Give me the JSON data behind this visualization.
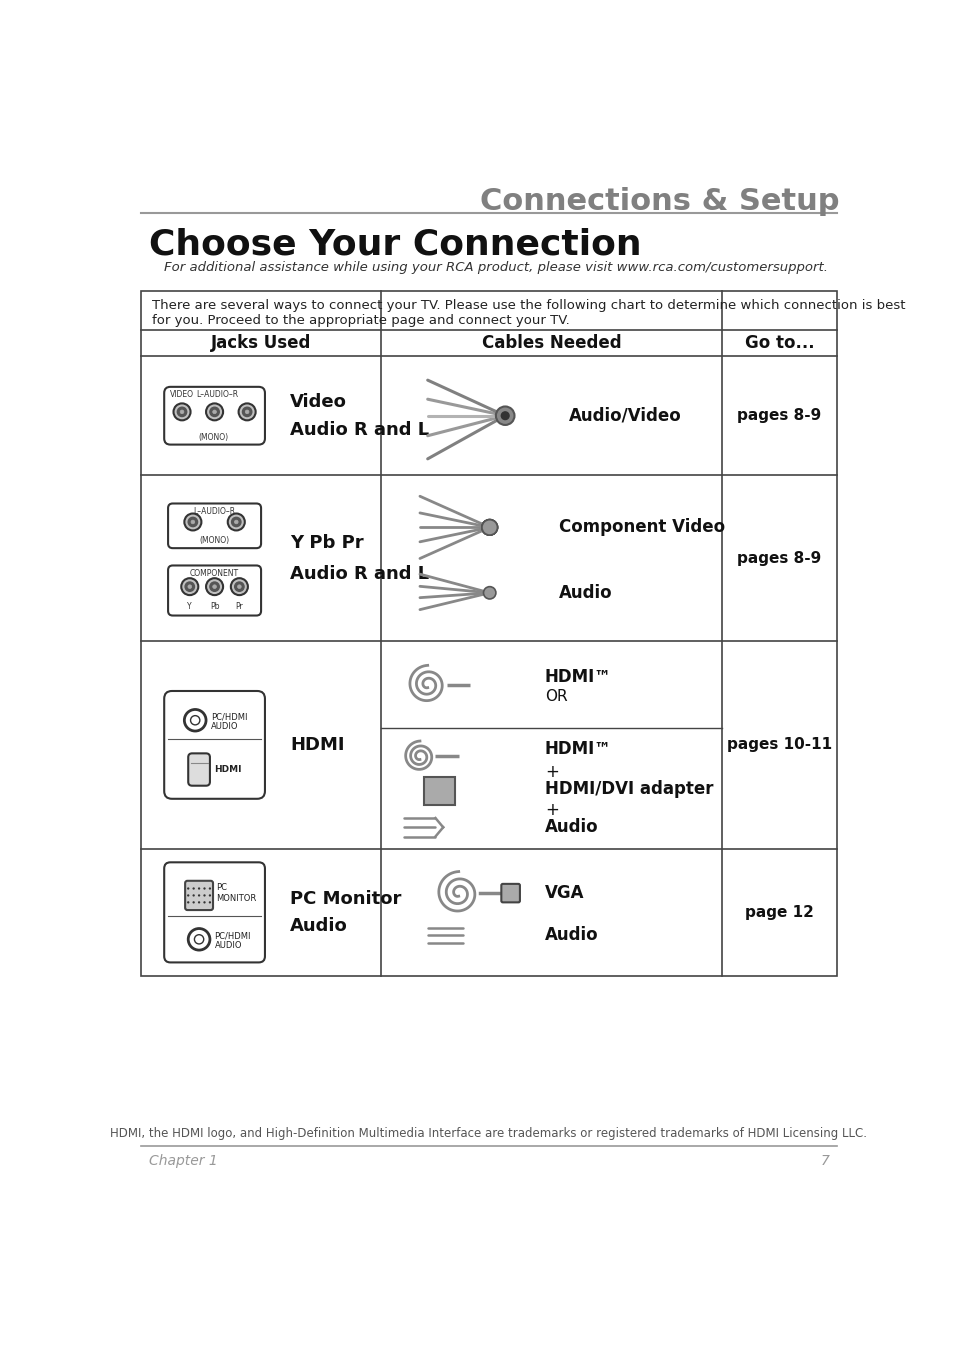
{
  "title": "Connections & Setup",
  "section_title": "Choose Your Connection",
  "subtitle": "For additional assistance while using your RCA product, please visit www.rca.com/customersupport.",
  "intro_text": "There are several ways to connect your TV. Please use the following chart to determine which connection is best\nfor you. Proceed to the appropriate page and connect your TV.",
  "col_headers": [
    "Jacks Used",
    "Cables Needed",
    "Go to..."
  ],
  "footer_text": "HDMI, the HDMI logo, and High-Definition Multimedia Interface are trademarks or registered trademarks of HDMI Licensing LLC.",
  "chapter_text": "Chapter 1",
  "page_num": "7",
  "bg_color": "#ffffff"
}
